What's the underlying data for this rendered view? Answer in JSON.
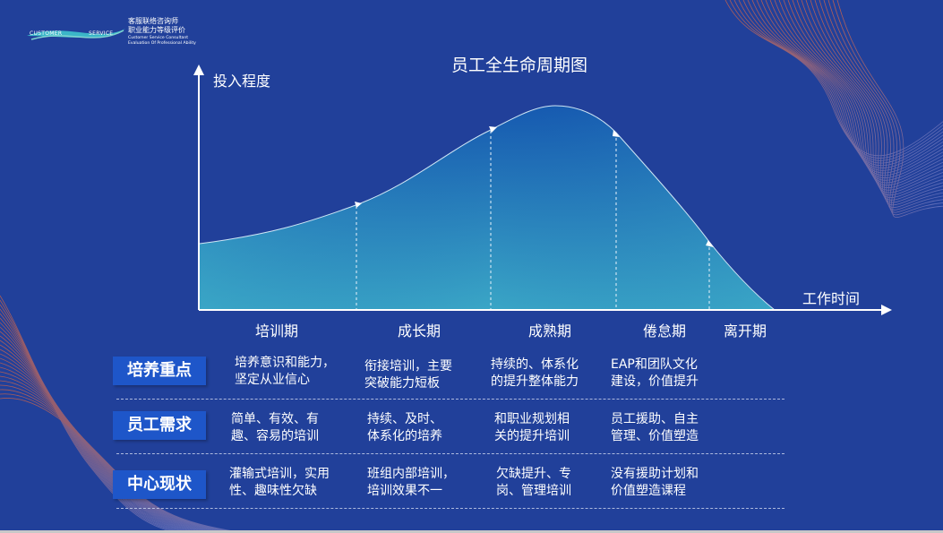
{
  "brand": {
    "logo_left": "CUSTOMER",
    "logo_right": "SERVICE",
    "cn_line1": "客服联络咨询师",
    "cn_line2": "职业能力等级评价",
    "en_line1": "Customer Service Consultant",
    "en_line2": "Evaluation Of Professional Ability"
  },
  "diagram": {
    "title": "员工全生命周期图",
    "y_axis_label": "投入程度",
    "x_axis_label": "工作时间",
    "stages": [
      "培训期",
      "成长期",
      "成熟期",
      "倦怠期",
      "离开期"
    ]
  },
  "table": {
    "rows": [
      {
        "label": "培养重点",
        "cells": [
          [
            "培养意识和能力，",
            "坚定从业信心"
          ],
          [
            "衔接培训，主要",
            "突破能力短板"
          ],
          [
            "持续的、体系化",
            "的提升整体能力"
          ],
          [
            "EAP和团队文化",
            "建设，价值提升"
          ]
        ]
      },
      {
        "label": "员工需求",
        "cells": [
          [
            "简单、有效、有",
            "趣、容易的培训"
          ],
          [
            "持续、及时、",
            "体系化的培养"
          ],
          [
            "和职业规划相",
            "关的提升培训"
          ],
          [
            "员工援助、自主",
            "管理、价值塑造"
          ]
        ]
      },
      {
        "label": "中心现状",
        "cells": [
          [
            "灌输式培训，实用",
            "性、趣味性欠缺"
          ],
          [
            "班组内部培训，",
            "培训效果不一"
          ],
          [
            "欠缺提升、专",
            "岗、管理培训"
          ],
          [
            "没有援助计划和",
            "价值塑造课程"
          ]
        ]
      }
    ]
  },
  "colors": {
    "background": "#21409a",
    "tag_fill": "#1e56c9",
    "curve_top": "#1a5fb8",
    "curve_bottom": "#3aa8c8",
    "accent_lines": "#e4663a"
  }
}
